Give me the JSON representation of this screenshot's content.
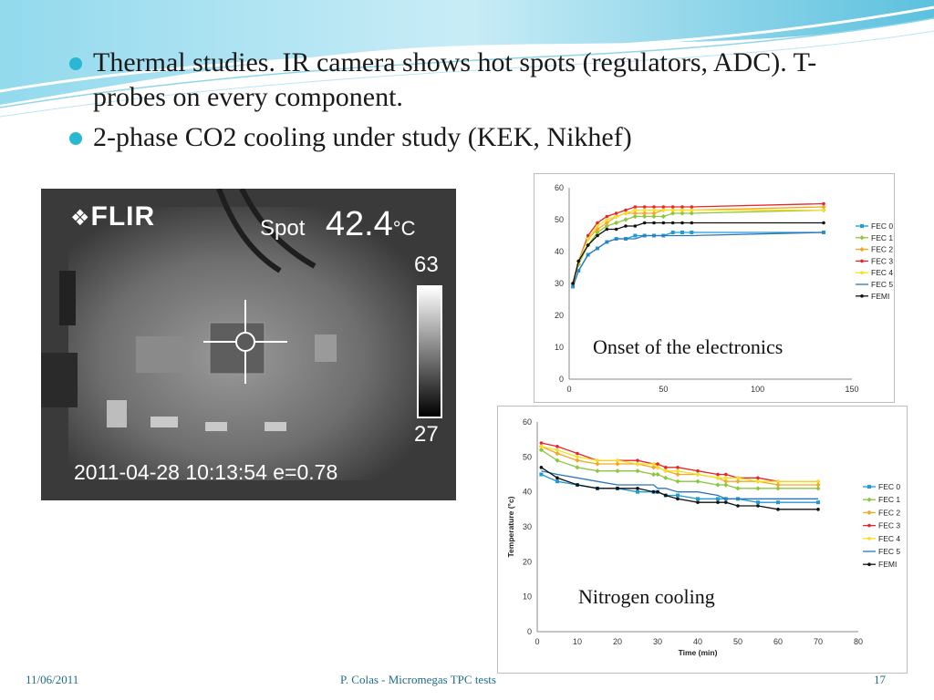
{
  "bullets": [
    "Thermal studies. IR camera shows hot spots (regulators, ADC). T-probes on every component.",
    "2-phase CO2 cooling under study (KEK, Nikhef)"
  ],
  "ir_image": {
    "brand": "FLIR",
    "spot_label": "Spot",
    "spot_value": "42.4",
    "spot_unit": "°C",
    "scale_max": "63",
    "scale_min": "27",
    "timestamp": "2011-04-28 10:13:54 e=0.78"
  },
  "captions": {
    "chart1": "Onset of the electronics",
    "chart2": "Nitrogen cooling"
  },
  "footer": {
    "date": "11/06/2011",
    "center": "P. Colas - Micromegas TPC tests",
    "page": "17"
  },
  "chart_data": [
    {
      "type": "line",
      "xlim": [
        0,
        150
      ],
      "ylim": [
        0,
        60
      ],
      "xticks": [
        0,
        50,
        100,
        150
      ],
      "yticks": [
        0,
        10,
        20,
        30,
        40,
        50,
        60
      ],
      "legend_position": "right",
      "series": [
        {
          "name": "FEC 0",
          "color": "#1f9bd7",
          "marker": "square",
          "x": [
            2,
            5,
            10,
            15,
            20,
            25,
            30,
            35,
            40,
            45,
            50,
            55,
            60,
            65,
            135
          ],
          "y": [
            29,
            34,
            39,
            41,
            43,
            44,
            44,
            45,
            45,
            45,
            45,
            46,
            46,
            46,
            46
          ]
        },
        {
          "name": "FEC 1",
          "color": "#8cc63f",
          "marker": "diamond",
          "x": [
            2,
            5,
            10,
            15,
            20,
            25,
            30,
            35,
            40,
            45,
            50,
            55,
            60,
            65,
            135
          ],
          "y": [
            30,
            36,
            42,
            46,
            48,
            49,
            50,
            51,
            51,
            51,
            51,
            52,
            52,
            52,
            53
          ]
        },
        {
          "name": "FEC 2",
          "color": "#f5a623",
          "marker": "diamond",
          "x": [
            2,
            5,
            10,
            15,
            20,
            25,
            30,
            35,
            40,
            45,
            50,
            55,
            60,
            65,
            135
          ],
          "y": [
            30,
            37,
            44,
            47,
            49,
            51,
            52,
            52,
            52,
            52,
            53,
            53,
            53,
            53,
            54
          ]
        },
        {
          "name": "FEC 3",
          "color": "#e8262a",
          "marker": "dot",
          "x": [
            2,
            5,
            10,
            15,
            20,
            25,
            30,
            35,
            40,
            45,
            50,
            55,
            60,
            65,
            135
          ],
          "y": [
            30,
            37,
            45,
            49,
            51,
            52,
            53,
            54,
            54,
            54,
            54,
            54,
            54,
            54,
            55
          ]
        },
        {
          "name": "FEC 4",
          "color": "#f7e11c",
          "marker": "dot",
          "x": [
            2,
            5,
            10,
            15,
            20,
            25,
            30,
            35,
            40,
            45,
            50,
            55,
            60,
            65,
            135
          ],
          "y": [
            30,
            37,
            44,
            48,
            50,
            51,
            52,
            53,
            53,
            53,
            53,
            53,
            53,
            53,
            53
          ]
        },
        {
          "name": "FEC 5",
          "color": "#2e75b6",
          "marker": "line",
          "x": [
            2,
            5,
            10,
            15,
            20,
            25,
            30,
            35,
            40,
            45,
            50,
            55,
            60,
            65,
            135
          ],
          "y": [
            29,
            34,
            39,
            41,
            43,
            44,
            44,
            44,
            45,
            45,
            45,
            45,
            45,
            45,
            46
          ]
        },
        {
          "name": "FEMI",
          "color": "#111111",
          "marker": "dot",
          "x": [
            2,
            5,
            10,
            15,
            20,
            25,
            30,
            35,
            40,
            45,
            50,
            55,
            60,
            65,
            135
          ],
          "y": [
            30,
            37,
            42,
            45,
            47,
            47,
            48,
            48,
            49,
            49,
            49,
            49,
            49,
            49,
            49
          ]
        }
      ]
    },
    {
      "type": "line",
      "xlabel": "Time (min)",
      "ylabel": "Temperature (°c)",
      "xlim": [
        0,
        80
      ],
      "ylim": [
        0,
        60
      ],
      "xticks": [
        0,
        10,
        20,
        30,
        40,
        50,
        60,
        70,
        80
      ],
      "yticks": [
        0,
        10,
        20,
        30,
        40,
        50,
        60
      ],
      "legend_position": "right",
      "series": [
        {
          "name": "FEC 0",
          "color": "#1f9bd7",
          "marker": "square",
          "x": [
            1,
            5,
            10,
            15,
            20,
            25,
            29,
            30,
            32,
            35,
            40,
            45,
            47,
            50,
            55,
            60,
            70
          ],
          "y": [
            45,
            43,
            42,
            41,
            41,
            40,
            40,
            40,
            39,
            39,
            38,
            38,
            38,
            38,
            37,
            37,
            37
          ]
        },
        {
          "name": "FEC 1",
          "color": "#8cc63f",
          "marker": "diamond",
          "x": [
            1,
            5,
            10,
            15,
            20,
            25,
            29,
            30,
            32,
            35,
            40,
            45,
            47,
            50,
            55,
            60,
            70
          ],
          "y": [
            52,
            49,
            47,
            46,
            46,
            46,
            45,
            45,
            44,
            43,
            43,
            42,
            42,
            41,
            41,
            41,
            41
          ]
        },
        {
          "name": "FEC 2",
          "color": "#f5a623",
          "marker": "diamond",
          "x": [
            1,
            5,
            10,
            15,
            20,
            25,
            29,
            30,
            32,
            35,
            40,
            45,
            47,
            50,
            55,
            60,
            70
          ],
          "y": [
            53,
            51,
            49,
            48,
            48,
            48,
            47,
            47,
            46,
            45,
            45,
            44,
            43,
            43,
            43,
            42,
            42
          ]
        },
        {
          "name": "FEC 3",
          "color": "#e8262a",
          "marker": "dot",
          "x": [
            1,
            5,
            10,
            15,
            20,
            25,
            29,
            30,
            32,
            35,
            40,
            45,
            47,
            50,
            55,
            60,
            70
          ],
          "y": [
            54,
            53,
            51,
            49,
            49,
            49,
            48,
            48,
            47,
            47,
            46,
            45,
            45,
            44,
            44,
            43,
            43
          ]
        },
        {
          "name": "FEC 4",
          "color": "#f7e11c",
          "marker": "dot",
          "x": [
            1,
            5,
            10,
            15,
            20,
            25,
            29,
            30,
            32,
            35,
            40,
            45,
            47,
            50,
            55,
            60,
            70
          ],
          "y": [
            53,
            52,
            50,
            49,
            49,
            48,
            48,
            47,
            46,
            46,
            45,
            44,
            44,
            44,
            43,
            43,
            43
          ]
        },
        {
          "name": "FEC 5",
          "color": "#2e75b6",
          "marker": "line",
          "x": [
            1,
            5,
            10,
            15,
            20,
            25,
            29,
            30,
            32,
            35,
            40,
            45,
            47,
            50,
            55,
            60,
            70
          ],
          "y": [
            46,
            45,
            44,
            43,
            42,
            42,
            42,
            41,
            41,
            40,
            40,
            39,
            38,
            38,
            38,
            38,
            38
          ]
        },
        {
          "name": "FEMI",
          "color": "#111111",
          "marker": "dot",
          "x": [
            1,
            5,
            10,
            15,
            20,
            25,
            29,
            30,
            32,
            35,
            40,
            45,
            47,
            50,
            55,
            60,
            70
          ],
          "y": [
            47,
            44,
            42,
            41,
            41,
            41,
            40,
            40,
            39,
            38,
            37,
            37,
            37,
            36,
            36,
            35,
            35
          ]
        }
      ]
    }
  ]
}
